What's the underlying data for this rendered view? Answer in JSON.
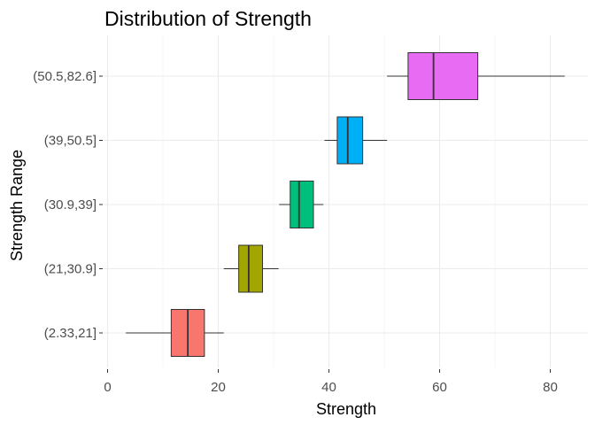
{
  "chart_data": {
    "type": "boxplot",
    "orientation": "horizontal",
    "title": "Distribution of Strength",
    "xlabel": "Strength",
    "ylabel": "Strength Range",
    "xlim": [
      0,
      85
    ],
    "xticks": [
      0,
      20,
      40,
      60,
      80
    ],
    "grid": true,
    "legend": "none",
    "categories": [
      "(2.33,21]",
      "(21,30.9]",
      "(30.9,39]",
      "(39,50.5]",
      "(50.5,82.6]"
    ],
    "boxes": [
      {
        "category": "(2.33,21]",
        "min": 3.3,
        "q1": 11.5,
        "median": 14.5,
        "q3": 17.5,
        "max": 21.0,
        "color": "#F8766D"
      },
      {
        "category": "(21,30.9]",
        "min": 21.0,
        "q1": 23.7,
        "median": 25.5,
        "q3": 28.0,
        "max": 30.9,
        "color": "#A3A500"
      },
      {
        "category": "(30.9,39]",
        "min": 31.0,
        "q1": 33.0,
        "median": 34.6,
        "q3": 37.2,
        "max": 39.0,
        "color": "#00BF7D"
      },
      {
        "category": "(39,50.5]",
        "min": 39.2,
        "q1": 41.5,
        "median": 43.4,
        "q3": 46.1,
        "max": 50.5,
        "color": "#00B0F6"
      },
      {
        "category": "(50.5,82.6]",
        "min": 50.5,
        "q1": 54.3,
        "median": 58.9,
        "q3": 66.9,
        "max": 82.6,
        "color": "#E76BF3"
      }
    ]
  }
}
